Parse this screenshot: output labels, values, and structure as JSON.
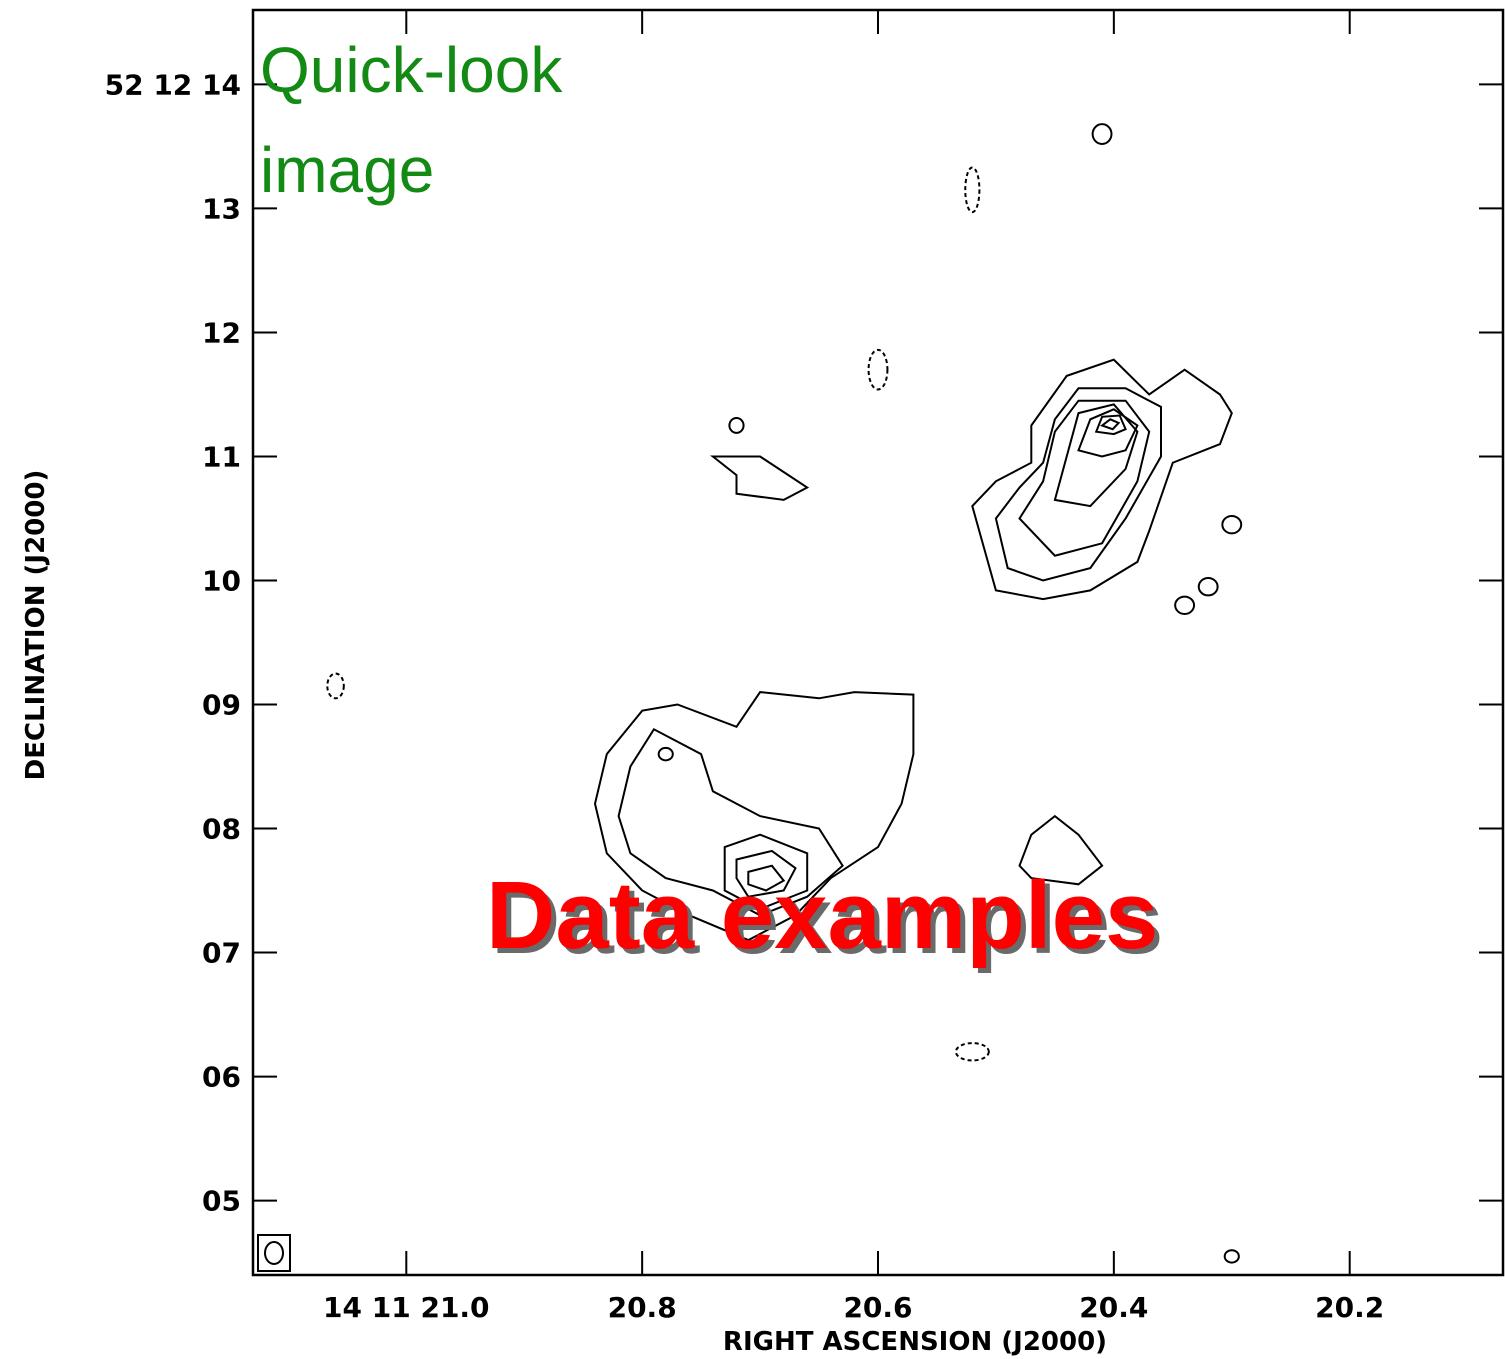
{
  "chart_data": {
    "type": "contour",
    "title": "",
    "xlabel": "RIGHT ASCENSION (J2000)",
    "ylabel": "DECLINATION (J2000)",
    "x_ticks": [
      {
        "value": 21.0,
        "label": "14 11 21.0"
      },
      {
        "value": 20.8,
        "label": "20.8"
      },
      {
        "value": 20.6,
        "label": "20.6"
      },
      {
        "value": 20.4,
        "label": "20.4"
      },
      {
        "value": 20.2,
        "label": "20.2"
      }
    ],
    "y_ticks": [
      {
        "value": 14,
        "label": "52 12 14"
      },
      {
        "value": 13,
        "label": "13"
      },
      {
        "value": 12,
        "label": "12"
      },
      {
        "value": 11,
        "label": "11"
      },
      {
        "value": 10,
        "label": "10"
      },
      {
        "value": 9,
        "label": "09"
      },
      {
        "value": 8,
        "label": "08"
      },
      {
        "value": 7,
        "label": "07"
      },
      {
        "value": 6,
        "label": "06"
      },
      {
        "value": 5,
        "label": "05"
      }
    ],
    "xlim": [
      21.13,
      20.07
    ],
    "ylim": [
      4.4,
      14.6
    ],
    "x_axis_reversed": true,
    "beam_marker": "bottom-left",
    "contours": [
      {
        "name": "north-lobe-1",
        "points": [
          [
            20.52,
            10.6
          ],
          [
            20.5,
            10.8
          ],
          [
            20.47,
            10.95
          ],
          [
            20.47,
            11.25
          ],
          [
            20.44,
            11.65
          ],
          [
            20.4,
            11.78
          ],
          [
            20.37,
            11.5
          ],
          [
            20.34,
            11.7
          ],
          [
            20.31,
            11.5
          ],
          [
            20.3,
            11.35
          ],
          [
            20.31,
            11.1
          ],
          [
            20.35,
            10.95
          ],
          [
            20.37,
            10.4
          ],
          [
            20.38,
            10.15
          ],
          [
            20.42,
            9.92
          ],
          [
            20.46,
            9.85
          ],
          [
            20.5,
            9.92
          ]
        ]
      },
      {
        "name": "north-lobe-2",
        "points": [
          [
            20.5,
            10.5
          ],
          [
            20.48,
            10.75
          ],
          [
            20.46,
            10.95
          ],
          [
            20.45,
            11.3
          ],
          [
            20.43,
            11.55
          ],
          [
            20.39,
            11.55
          ],
          [
            20.36,
            11.4
          ],
          [
            20.36,
            11.0
          ],
          [
            20.39,
            10.5
          ],
          [
            20.42,
            10.1
          ],
          [
            20.46,
            10.0
          ],
          [
            20.49,
            10.1
          ]
        ]
      },
      {
        "name": "north-lobe-3",
        "points": [
          [
            20.48,
            10.5
          ],
          [
            20.46,
            10.8
          ],
          [
            20.45,
            11.2
          ],
          [
            20.43,
            11.45
          ],
          [
            20.39,
            11.45
          ],
          [
            20.37,
            11.2
          ],
          [
            20.38,
            10.8
          ],
          [
            20.41,
            10.3
          ],
          [
            20.45,
            10.2
          ]
        ]
      },
      {
        "name": "north-lobe-4",
        "points": [
          [
            20.45,
            10.65
          ],
          [
            20.44,
            11.0
          ],
          [
            20.43,
            11.35
          ],
          [
            20.4,
            11.42
          ],
          [
            20.38,
            11.2
          ],
          [
            20.39,
            10.9
          ],
          [
            20.42,
            10.6
          ]
        ]
      },
      {
        "name": "north-lobe-5",
        "points": [
          [
            20.43,
            11.05
          ],
          [
            20.42,
            11.3
          ],
          [
            20.4,
            11.38
          ],
          [
            20.38,
            11.25
          ],
          [
            20.39,
            11.05
          ],
          [
            20.41,
            11.0
          ]
        ]
      },
      {
        "name": "north-lobe-6",
        "points": [
          [
            20.415,
            11.2
          ],
          [
            20.41,
            11.32
          ],
          [
            20.395,
            11.33
          ],
          [
            20.39,
            11.22
          ],
          [
            20.4,
            11.18
          ]
        ]
      },
      {
        "name": "north-core",
        "points": [
          [
            20.41,
            11.25
          ],
          [
            20.403,
            11.3
          ],
          [
            20.396,
            11.27
          ],
          [
            20.401,
            11.22
          ]
        ]
      },
      {
        "name": "south-lobe-1",
        "points": [
          [
            20.84,
            8.2
          ],
          [
            20.83,
            8.6
          ],
          [
            20.8,
            8.95
          ],
          [
            20.77,
            9.0
          ],
          [
            20.72,
            8.82
          ],
          [
            20.7,
            9.1
          ],
          [
            20.65,
            9.05
          ],
          [
            20.62,
            9.1
          ],
          [
            20.57,
            9.08
          ],
          [
            20.57,
            8.6
          ],
          [
            20.58,
            8.2
          ],
          [
            20.6,
            7.85
          ],
          [
            20.64,
            7.6
          ],
          [
            20.67,
            7.3
          ],
          [
            20.71,
            7.1
          ],
          [
            20.76,
            7.3
          ],
          [
            20.8,
            7.5
          ],
          [
            20.83,
            7.8
          ]
        ]
      },
      {
        "name": "south-lobe-2",
        "points": [
          [
            20.82,
            8.1
          ],
          [
            20.81,
            8.5
          ],
          [
            20.79,
            8.8
          ],
          [
            20.75,
            8.6
          ],
          [
            20.74,
            8.3
          ],
          [
            20.7,
            8.1
          ],
          [
            20.65,
            8.0
          ],
          [
            20.63,
            7.7
          ],
          [
            20.66,
            7.45
          ],
          [
            20.7,
            7.3
          ],
          [
            20.74,
            7.5
          ],
          [
            20.78,
            7.6
          ],
          [
            20.81,
            7.8
          ]
        ]
      },
      {
        "name": "south-lobe-3",
        "points": [
          [
            20.73,
            7.85
          ],
          [
            20.7,
            7.95
          ],
          [
            20.66,
            7.8
          ],
          [
            20.66,
            7.5
          ],
          [
            20.7,
            7.35
          ],
          [
            20.73,
            7.5
          ]
        ]
      },
      {
        "name": "south-lobe-4",
        "points": [
          [
            20.72,
            7.75
          ],
          [
            20.69,
            7.82
          ],
          [
            20.67,
            7.68
          ],
          [
            20.68,
            7.5
          ],
          [
            20.71,
            7.45
          ],
          [
            20.72,
            7.6
          ]
        ]
      },
      {
        "name": "south-core",
        "points": [
          [
            20.71,
            7.65
          ],
          [
            20.69,
            7.7
          ],
          [
            20.68,
            7.58
          ],
          [
            20.695,
            7.5
          ],
          [
            20.71,
            7.55
          ]
        ]
      },
      {
        "name": "east-blob",
        "points": [
          [
            20.72,
            10.85
          ],
          [
            20.74,
            11.0
          ],
          [
            20.7,
            11.0
          ],
          [
            20.66,
            10.75
          ],
          [
            20.68,
            10.65
          ],
          [
            20.72,
            10.7
          ]
        ]
      },
      {
        "name": "center-blob",
        "points": [
          [
            20.48,
            7.7
          ],
          [
            20.47,
            7.95
          ],
          [
            20.45,
            8.1
          ],
          [
            20.43,
            7.95
          ],
          [
            20.41,
            7.7
          ],
          [
            20.43,
            7.55
          ],
          [
            20.47,
            7.6
          ]
        ]
      }
    ],
    "negative_contours": [
      {
        "name": "neg-1",
        "center": [
          20.52,
          13.15
        ],
        "r": [
          0.006,
          0.18
        ]
      },
      {
        "name": "neg-2",
        "center": [
          20.6,
          11.7
        ],
        "r": [
          0.008,
          0.16
        ]
      },
      {
        "name": "neg-3",
        "center": [
          21.06,
          9.15
        ],
        "r": [
          0.007,
          0.1
        ]
      },
      {
        "name": "neg-4",
        "center": [
          20.52,
          6.2
        ],
        "r": [
          0.014,
          0.07
        ]
      }
    ],
    "small_contours": [
      {
        "name": "blob-a",
        "center": [
          20.41,
          13.6
        ],
        "r": [
          0.008,
          0.08
        ]
      },
      {
        "name": "blob-b",
        "center": [
          20.3,
          10.45
        ],
        "r": [
          0.008,
          0.07
        ]
      },
      {
        "name": "blob-c",
        "center": [
          20.32,
          9.95
        ],
        "r": [
          0.008,
          0.07
        ]
      },
      {
        "name": "blob-d",
        "center": [
          20.34,
          9.8
        ],
        "r": [
          0.008,
          0.07
        ]
      },
      {
        "name": "blob-e",
        "center": [
          20.3,
          4.55
        ],
        "r": [
          0.006,
          0.05
        ]
      },
      {
        "name": "blob-f",
        "center": [
          20.72,
          11.25
        ],
        "r": [
          0.006,
          0.06
        ]
      },
      {
        "name": "blob-g",
        "center": [
          20.78,
          8.6
        ],
        "r": [
          0.006,
          0.05
        ]
      }
    ]
  },
  "overlays": {
    "quicklook_line1": "Quick-look",
    "quicklook_line2": "image",
    "headline": "Data examples"
  }
}
